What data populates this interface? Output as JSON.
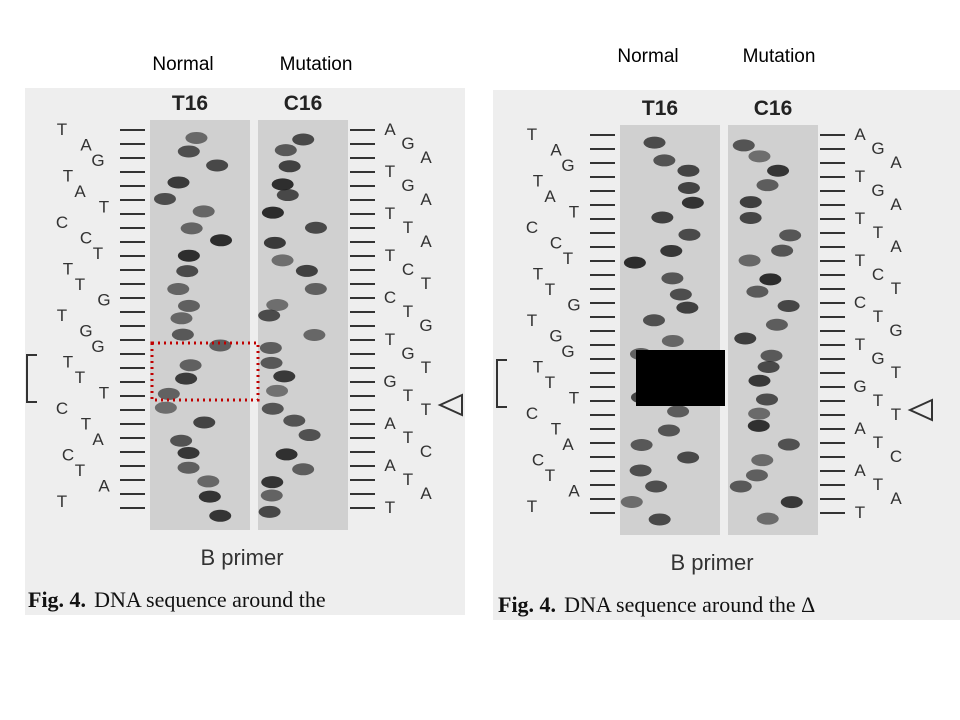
{
  "panels": [
    {
      "normal": "Normal",
      "mutation": "Mutation",
      "lanes": [
        "T16",
        "C16"
      ],
      "left_sequence": [
        "T",
        "A",
        "G",
        "T",
        "A",
        "T",
        "C",
        "C",
        "T",
        "T",
        "T",
        "G",
        "T",
        "G",
        "G",
        "T",
        "T",
        "T",
        "C",
        "T",
        "A",
        "C",
        "T",
        "A",
        "T"
      ],
      "right_sequence": [
        "A",
        "G",
        "A",
        "T",
        "G",
        "A",
        "T",
        "T",
        "A",
        "T",
        "C",
        "T",
        "C",
        "T",
        "G",
        "T",
        "G",
        "T",
        "G",
        "T",
        "T",
        "A",
        "T",
        "C",
        "A",
        "T",
        "A",
        "T"
      ],
      "footer": "B primer",
      "caption_label": "Fig. 4.",
      "caption_text": "DNA sequence around the"
    },
    {
      "normal": "Normal",
      "mutation": "Mutation",
      "lanes": [
        "T16",
        "C16"
      ],
      "left_sequence": [
        "T",
        "A",
        "G",
        "T",
        "A",
        "T",
        "C",
        "C",
        "T",
        "T",
        "T",
        "G",
        "T",
        "G",
        "G",
        "T",
        "T",
        "T",
        "C",
        "T",
        "A",
        "C",
        "T",
        "A",
        "T"
      ],
      "right_sequence": [
        "A",
        "G",
        "A",
        "T",
        "G",
        "A",
        "T",
        "T",
        "A",
        "T",
        "C",
        "T",
        "C",
        "T",
        "G",
        "T",
        "G",
        "T",
        "G",
        "T",
        "T",
        "A",
        "T",
        "C",
        "A",
        "T",
        "A",
        "T"
      ],
      "footer": "B primer",
      "caption_label": "Fig. 4.",
      "caption_text": "DNA sequence around the Δ"
    }
  ]
}
